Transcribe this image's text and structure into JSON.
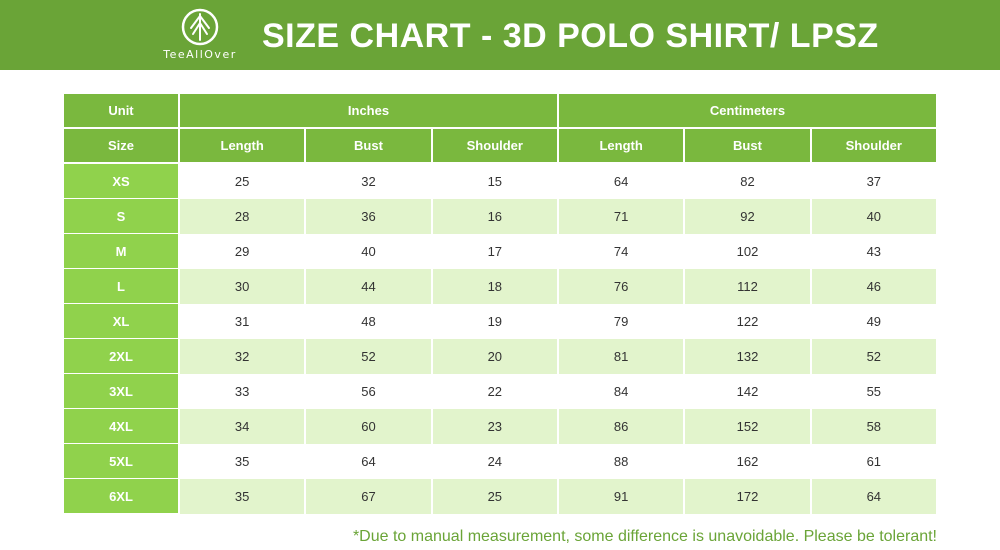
{
  "header": {
    "logo_text": "TeeAllOver",
    "title": "SIZE CHART - 3D POLO SHIRT/ LPSZ"
  },
  "table": {
    "unit_label": "Unit",
    "group_inches": "Inches",
    "group_centimeters": "Centimeters",
    "size_label": "Size",
    "columns": [
      "Length",
      "Bust",
      "Shoulder",
      "Length",
      "Bust",
      "Shoulder"
    ],
    "rows": [
      {
        "size": "XS",
        "values": [
          "25",
          "32",
          "15",
          "64",
          "82",
          "37"
        ]
      },
      {
        "size": "S",
        "values": [
          "28",
          "36",
          "16",
          "71",
          "92",
          "40"
        ]
      },
      {
        "size": "M",
        "values": [
          "29",
          "40",
          "17",
          "74",
          "102",
          "43"
        ]
      },
      {
        "size": "L",
        "values": [
          "30",
          "44",
          "18",
          "76",
          "112",
          "46"
        ]
      },
      {
        "size": "XL",
        "values": [
          "31",
          "48",
          "19",
          "79",
          "122",
          "49"
        ]
      },
      {
        "size": "2XL",
        "values": [
          "32",
          "52",
          "20",
          "81",
          "132",
          "52"
        ]
      },
      {
        "size": "3XL",
        "values": [
          "33",
          "56",
          "22",
          "84",
          "142",
          "55"
        ]
      },
      {
        "size": "4XL",
        "values": [
          "34",
          "60",
          "23",
          "86",
          "152",
          "58"
        ]
      },
      {
        "size": "5XL",
        "values": [
          "35",
          "64",
          "24",
          "88",
          "162",
          "61"
        ]
      },
      {
        "size": "6XL",
        "values": [
          "35",
          "67",
          "25",
          "91",
          "172",
          "64"
        ]
      }
    ]
  },
  "footnote": "*Due to manual measurement, some difference is unavoidable. Please be tolerant!",
  "colors": {
    "banner": "#6aa437",
    "header_cell": "#7ab83e",
    "size_cell": "#90d24c",
    "alt_row": "#e2f4cc",
    "footnote": "#6aa437"
  }
}
